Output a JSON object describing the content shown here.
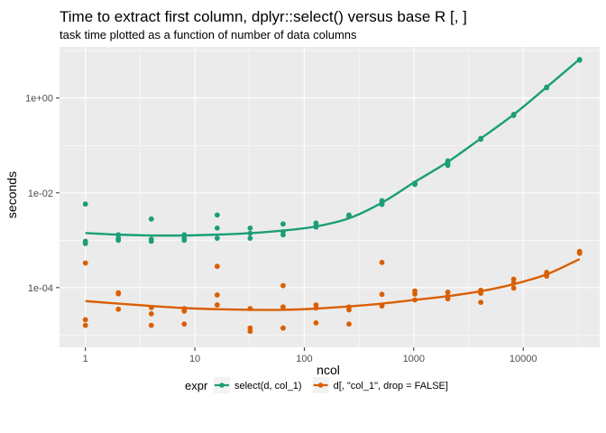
{
  "chart_data": {
    "type": "scatter",
    "title": "Time to extract first column, dplyr::select() versus base R [, ]",
    "subtitle": "task time plotted as a function of number of data columns",
    "xlabel": "ncol",
    "ylabel": "seconds",
    "x_scale": "log10",
    "y_scale": "log10",
    "xlim": [
      0.58,
      50000
    ],
    "ylim": [
      5.5e-06,
      12
    ],
    "x_ticks": [
      {
        "value": 1,
        "label": "1"
      },
      {
        "value": 10,
        "label": "10"
      },
      {
        "value": 100,
        "label": "100"
      },
      {
        "value": 1000,
        "label": "1000"
      },
      {
        "value": 10000,
        "label": "10000"
      }
    ],
    "y_ticks": [
      {
        "value": 0.0001,
        "label": "1e-04"
      },
      {
        "value": 0.01,
        "label": "1e-02"
      },
      {
        "value": 1,
        "label": "1e+00"
      }
    ],
    "panel_background": "#ebebeb",
    "grid": true,
    "legend": {
      "title": "expr",
      "position": "bottom"
    },
    "series": [
      {
        "name": "select(d, col_1)",
        "color": "#1b9e77",
        "points": [
          [
            1,
            0.0058
          ],
          [
            1,
            0.00095
          ],
          [
            1,
            0.00085
          ],
          [
            2,
            0.0013
          ],
          [
            2,
            0.0011
          ],
          [
            2,
            0.001
          ],
          [
            4,
            0.0028
          ],
          [
            4,
            0.00105
          ],
          [
            4,
            0.00095
          ],
          [
            8,
            0.0013
          ],
          [
            8,
            0.0011
          ],
          [
            8,
            0.001
          ],
          [
            16,
            0.0034
          ],
          [
            16,
            0.0018
          ],
          [
            16,
            0.0011
          ],
          [
            32,
            0.0018
          ],
          [
            32,
            0.0014
          ],
          [
            32,
            0.0011
          ],
          [
            64,
            0.0022
          ],
          [
            64,
            0.0015
          ],
          [
            64,
            0.0013
          ],
          [
            128,
            0.0023
          ],
          [
            128,
            0.002
          ],
          [
            128,
            0.0019
          ],
          [
            256,
            0.0034
          ],
          [
            256,
            0.0032
          ],
          [
            512,
            0.0068
          ],
          [
            512,
            0.0061
          ],
          [
            512,
            0.0057
          ],
          [
            1024,
            0.016
          ],
          [
            1024,
            0.015
          ],
          [
            2048,
            0.047
          ],
          [
            2048,
            0.042
          ],
          [
            2048,
            0.038
          ],
          [
            4096,
            0.14
          ],
          [
            4096,
            0.135
          ],
          [
            8192,
            0.45
          ],
          [
            8192,
            0.43
          ],
          [
            16384,
            1.7
          ],
          [
            16384,
            1.65
          ],
          [
            32768,
            6.5
          ],
          [
            32768,
            6.3
          ]
        ],
        "smooth": [
          [
            1,
            0.00142
          ],
          [
            2,
            0.00131
          ],
          [
            4,
            0.00126
          ],
          [
            8,
            0.00126
          ],
          [
            16,
            0.00131
          ],
          [
            32,
            0.00141
          ],
          [
            64,
            0.0016
          ],
          [
            128,
            0.00195
          ],
          [
            256,
            0.0029
          ],
          [
            512,
            0.0062
          ],
          [
            1024,
            0.017
          ],
          [
            2048,
            0.045
          ],
          [
            4096,
            0.14
          ],
          [
            8192,
            0.45
          ],
          [
            16384,
            1.7
          ],
          [
            32768,
            6.6
          ]
        ]
      },
      {
        "name": "d[, \"col_1\", drop = FALSE]",
        "color": "#d95f02",
        "points": [
          [
            1,
            0.00033
          ],
          [
            1,
            2.1e-05
          ],
          [
            1,
            1.6e-05
          ],
          [
            2,
            7.8e-05
          ],
          [
            2,
            7.4e-05
          ],
          [
            2,
            3.5e-05
          ],
          [
            4,
            3.8e-05
          ],
          [
            4,
            2.8e-05
          ],
          [
            4,
            1.6e-05
          ],
          [
            8,
            3.6e-05
          ],
          [
            8,
            3.2e-05
          ],
          [
            8,
            1.7e-05
          ],
          [
            16,
            0.00028
          ],
          [
            16,
            7e-05
          ],
          [
            16,
            4.3e-05
          ],
          [
            32,
            3.6e-05
          ],
          [
            32,
            1.4e-05
          ],
          [
            32,
            1.2e-05
          ],
          [
            64,
            0.00011
          ],
          [
            64,
            3.9e-05
          ],
          [
            64,
            1.4e-05
          ],
          [
            128,
            4.3e-05
          ],
          [
            128,
            3.7e-05
          ],
          [
            128,
            1.8e-05
          ],
          [
            256,
            3.9e-05
          ],
          [
            256,
            3.4e-05
          ],
          [
            256,
            1.7e-05
          ],
          [
            512,
            0.00034
          ],
          [
            512,
            7.2e-05
          ],
          [
            512,
            4.1e-05
          ],
          [
            1024,
            8.5e-05
          ],
          [
            1024,
            7.3e-05
          ],
          [
            1024,
            5.5e-05
          ],
          [
            2048,
            8e-05
          ],
          [
            2048,
            6.6e-05
          ],
          [
            2048,
            5.8e-05
          ],
          [
            4096,
            8.8e-05
          ],
          [
            4096,
            7.6e-05
          ],
          [
            4096,
            4.9e-05
          ],
          [
            8192,
            0.00015
          ],
          [
            8192,
            0.000125
          ],
          [
            8192,
            9.8e-05
          ],
          [
            16384,
            0.00021
          ],
          [
            16384,
            0.00019
          ],
          [
            16384,
            0.000175
          ],
          [
            32768,
            0.00058
          ],
          [
            32768,
            0.00055
          ],
          [
            32768,
            0.00053
          ]
        ],
        "smooth": [
          [
            1,
            5.2e-05
          ],
          [
            2,
            4.6e-05
          ],
          [
            4,
            4.1e-05
          ],
          [
            8,
            3.7e-05
          ],
          [
            16,
            3.5e-05
          ],
          [
            32,
            3.4e-05
          ],
          [
            64,
            3.4e-05
          ],
          [
            128,
            3.6e-05
          ],
          [
            256,
            4e-05
          ],
          [
            512,
            4.6e-05
          ],
          [
            1024,
            5.5e-05
          ],
          [
            2048,
            6.6e-05
          ],
          [
            4096,
            8.4e-05
          ],
          [
            8192,
            0.000118
          ],
          [
            16384,
            0.00019
          ],
          [
            32768,
            0.0004
          ]
        ]
      }
    ]
  }
}
